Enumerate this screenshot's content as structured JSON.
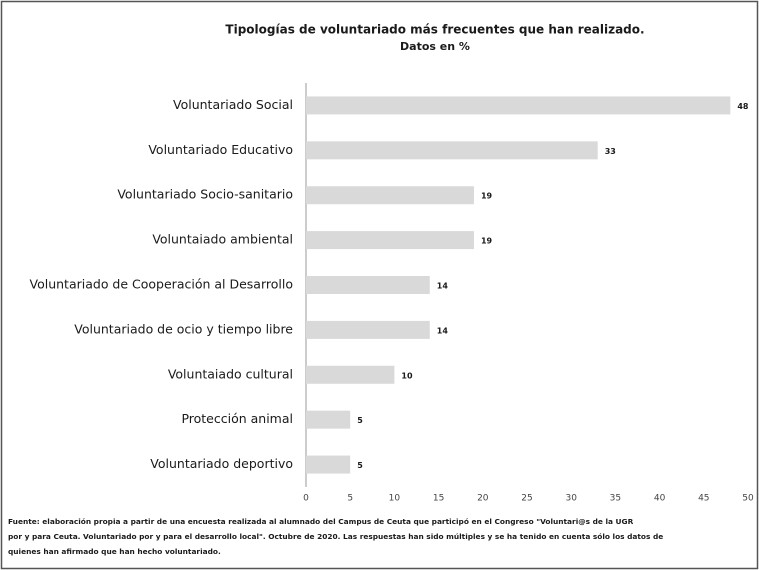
{
  "chart_data": {
    "type": "barh",
    "title": "Tipologías de voluntariado más frecuentes que han realizado.",
    "subtitle": "Datos en %",
    "categories": [
      "Voluntariado Social",
      "Voluntariado Educativo",
      "Voluntariado Socio-sanitario",
      "Voluntaiado ambiental",
      "Voluntariado de Cooperación al Desarrollo",
      "Voluntariado de ocio y tiempo libre",
      "Voluntaiado cultural",
      "Protección animal",
      "Voluntariado deportivo"
    ],
    "values": [
      48,
      33,
      19,
      19,
      14,
      14,
      10,
      5,
      5
    ],
    "color": "#d9d9d9",
    "xlim": [
      0,
      50
    ],
    "xticks": [
      0,
      5,
      10,
      15,
      20,
      25,
      30,
      35,
      40,
      45,
      50
    ],
    "grid": false,
    "source": [
      "Fuente: elaboración propia a partir de una encuesta realizada al alumnado del Campus de Ceuta  que participó en el Congreso \"Voluntari@s de la UGR",
      "por y para Ceuta. Voluntariado por y para el desarrollo local\". Octubre de 2020.  Las respuestas han sido múltiples y se ha tenido en cuenta sólo los datos de",
      "quienes han afirmado  que han hecho voluntariado."
    ]
  }
}
